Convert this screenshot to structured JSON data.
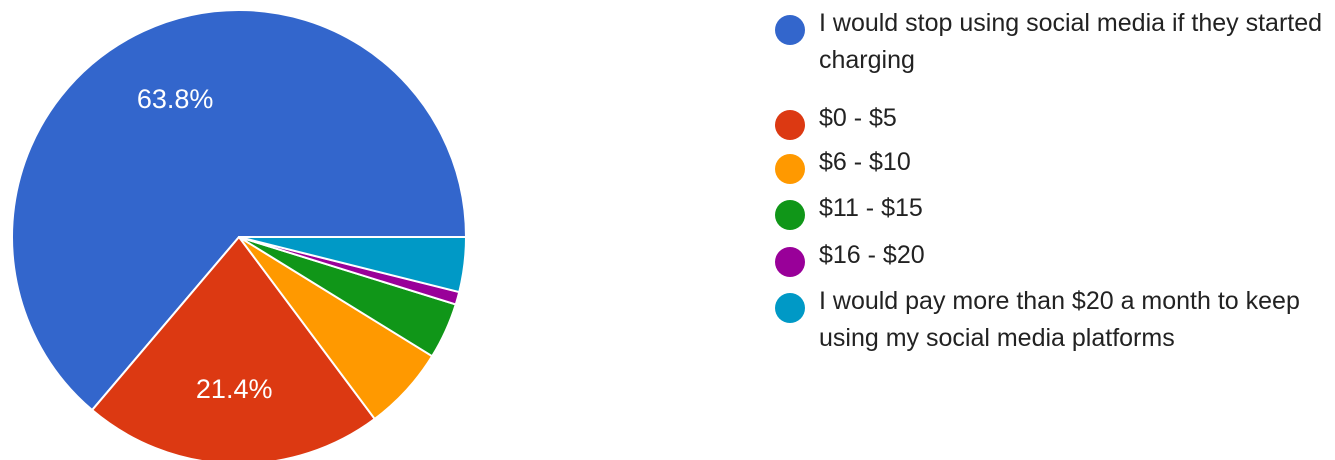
{
  "chart_data": {
    "type": "pie",
    "title": "",
    "slices": [
      {
        "label": "I would stop using social media if they started charging",
        "value": 63.8,
        "display": "63.8%",
        "color": "#3366cc"
      },
      {
        "label": "$0 - $5",
        "value": 21.4,
        "display": "21.4%",
        "color": "#dc3912"
      },
      {
        "label": "$6 - $10",
        "value": 6.0,
        "display": "",
        "color": "#ff9900"
      },
      {
        "label": "$11 - $15",
        "value": 4.0,
        "display": "",
        "color": "#109618"
      },
      {
        "label": "$16 - $20",
        "value": 0.9,
        "display": "",
        "color": "#990099"
      },
      {
        "label": "I would pay more than $20 a month to keep using my social media platforms",
        "value": 3.9,
        "display": "",
        "color": "#0099c6"
      }
    ],
    "legend_position": "right"
  }
}
